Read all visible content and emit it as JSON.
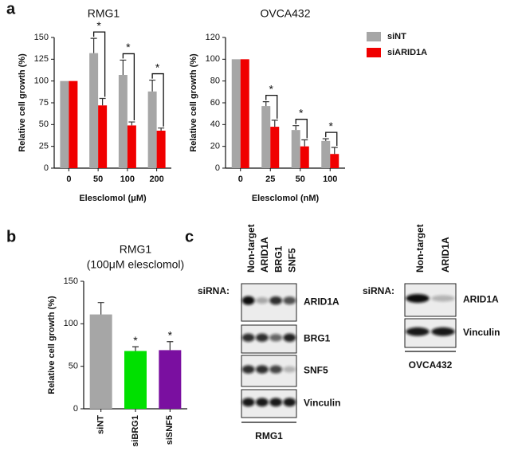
{
  "chart_data": [
    {
      "type": "bar",
      "title": "RMG1",
      "xlabel": "Elesclomol (μM)",
      "ylabel": "Relative cell growth (%)",
      "categories": [
        "0",
        "50",
        "100",
        "200"
      ],
      "series": [
        {
          "color": "#a6a6a6",
          "values": [
            100,
            132,
            107,
            88
          ],
          "errors": [
            0,
            17,
            17,
            13
          ]
        },
        {
          "color": "#f00000",
          "values": [
            100,
            72,
            49,
            43
          ],
          "errors": [
            0,
            8,
            4,
            3
          ]
        }
      ],
      "ylim": [
        0,
        150
      ],
      "yticks": [
        0,
        25,
        50,
        75,
        100,
        125,
        150
      ],
      "annotations": [
        "*",
        "*",
        "*"
      ]
    },
    {
      "type": "bar",
      "title": "OVCA432",
      "xlabel": "Elesclomol (nM)",
      "ylabel": "Relative cell growth (%)",
      "categories": [
        "0",
        "25",
        "50",
        "100"
      ],
      "series": [
        {
          "name": "siNT",
          "color": "#a6a6a6",
          "values": [
            100,
            57,
            35,
            25
          ],
          "errors": [
            0,
            4,
            4,
            2
          ]
        },
        {
          "name": "siARID1A",
          "color": "#f00000",
          "values": [
            100,
            38,
            20,
            13
          ],
          "errors": [
            0,
            6,
            6,
            6
          ]
        }
      ],
      "ylim": [
        0,
        120
      ],
      "yticks": [
        0,
        20,
        40,
        60,
        80,
        100,
        120
      ],
      "annotations": [
        "*",
        "*",
        "*"
      ]
    },
    {
      "type": "bar",
      "title": "RMG1",
      "subtitle": "(100μM elesclomol)",
      "ylabel": "Relative cell growth (%)",
      "categories": [
        "siNT",
        "siBRG1",
        "siSNF5"
      ],
      "values": [
        111,
        68,
        69
      ],
      "errors": [
        14,
        5,
        10
      ],
      "colors": [
        "#a6a6a6",
        "#00e000",
        "#7a0fa0"
      ],
      "ylim": [
        0,
        150
      ],
      "yticks": [
        0,
        50,
        100,
        150
      ],
      "annotations": [
        "*",
        "*"
      ]
    }
  ],
  "panel_labels": [
    "a",
    "b",
    "c"
  ],
  "blots": [
    {
      "prefix": "siRNA:",
      "lanes": [
        "Non-target",
        "ARID1A",
        "BRG1",
        "SNF5"
      ],
      "proteins": [
        "ARID1A",
        "BRG1",
        "SNF5",
        "Vinculin"
      ],
      "cell_line": "RMG1"
    },
    {
      "prefix": "siRNA:",
      "lanes": [
        "Non-target",
        "ARID1A"
      ],
      "proteins": [
        "ARID1A",
        "Vinculin"
      ],
      "cell_line": "OVCA432"
    }
  ]
}
